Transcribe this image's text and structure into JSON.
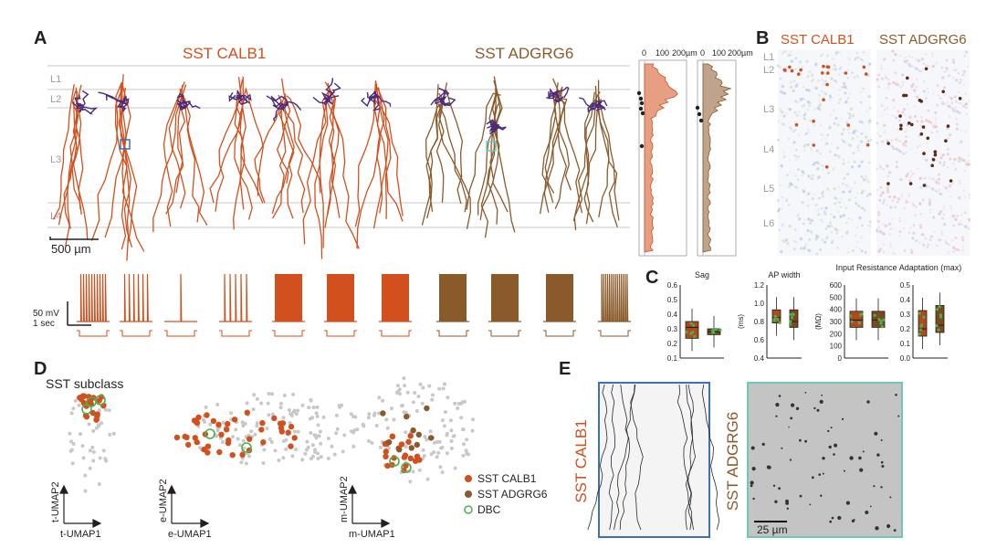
{
  "panel_a": {
    "letter": "A",
    "label_calb1": "SST CALB1",
    "label_adgrg6": "SST ADGRG6",
    "layers": [
      "L1",
      "L2",
      "L3",
      "L4"
    ],
    "scalebar": "500 µm",
    "depth_axis_ticks": [
      "0",
      "100",
      "200µm"
    ],
    "ephys_scale_mv": "50 mV",
    "ephys_scale_time": "1 sec"
  },
  "panel_b": {
    "letter": "B",
    "label_calb1": "SST CALB1",
    "label_adgrg6": "SST ADGRG6",
    "layers": [
      "L1",
      "L2",
      "L3",
      "L4",
      "L5",
      "L6"
    ]
  },
  "panel_c": {
    "letter": "C",
    "plots": [
      {
        "title": "Sag",
        "unit": "",
        "ticks": [
          "0.6",
          "0.5",
          "0.4",
          "0.3",
          "0.2",
          "0.1"
        ]
      },
      {
        "title": "AP width",
        "unit": "(ms)",
        "ticks": [
          "1.2",
          "1.0",
          "0.8",
          "0.6",
          "0.4"
        ]
      },
      {
        "title": "Input Resistance",
        "unit": "(MΩ)",
        "ticks": [
          "600",
          "500",
          "400",
          "300",
          "200",
          "100",
          "0"
        ]
      },
      {
        "title": "Adaptation (max)",
        "unit": "",
        "ticks": [
          "0.5",
          "0.4",
          "0.3",
          "0.2",
          "0.1",
          "0.0"
        ]
      }
    ]
  },
  "panel_d": {
    "letter": "D",
    "title": "SST subclass",
    "axes": [
      {
        "x": "t-UMAP1",
        "y": "t-UMAP2"
      },
      {
        "x": "e-UMAP1",
        "y": "e-UMAP2"
      },
      {
        "x": "m-UMAP1",
        "y": "m-UMAP2"
      }
    ],
    "legend": [
      "SST CALB1",
      "SST ADGRG6",
      "DBC"
    ]
  },
  "panel_e": {
    "letter": "E",
    "label_calb1": "SST CALB1",
    "label_adgrg6": "SST ADGRG6",
    "scalebar": "25 µm"
  },
  "colors": {
    "calb1": "#d2501e",
    "adgrg6": "#8b5a2b",
    "dark_adgrg6": "#5a2a12",
    "dbc": "#4caf50",
    "axon": "#4b2a7b",
    "layer_line": "#c8c8c8",
    "box_calb1": "#b04a1a",
    "box_adgrg6": "#7a4a1c",
    "frame_blue": "#3f6fb5",
    "frame_teal": "#6ec6bf"
  }
}
